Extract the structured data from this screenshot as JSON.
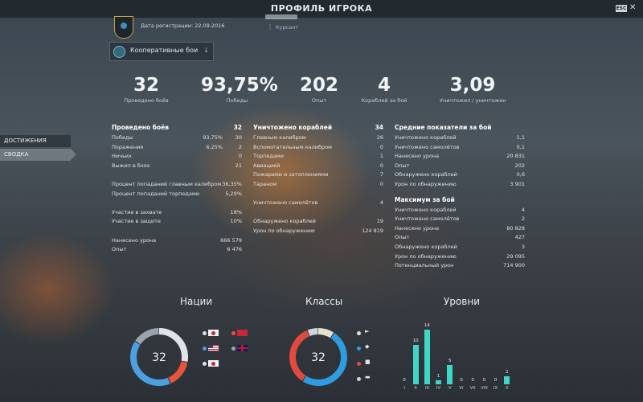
{
  "window": {
    "title": "ПРОФИЛЬ ИГРОКА",
    "close_key": "ESC",
    "close_glyph": "✕"
  },
  "player": {
    "registration": "Дата регистрации: 22.09.2016",
    "rank": "Курсант"
  },
  "mode_select": {
    "value": "Кооперативные бои"
  },
  "summary": [
    {
      "value": "32",
      "label": "Проведено боёв"
    },
    {
      "value": "93,75%",
      "label": "Победы"
    },
    {
      "value": "202",
      "label": "Опыт"
    },
    {
      "value": "4",
      "label": "Кораблей за бой"
    },
    {
      "value": "3,09",
      "label": "Уничтожил / уничтожен"
    }
  ],
  "side_nav": [
    {
      "label": "ДОСТИЖЕНИЯ"
    },
    {
      "label": "СВОДКА"
    }
  ],
  "battles": {
    "header": "Проведено боёв",
    "header_value": "32",
    "rows1": [
      {
        "label": "Победы",
        "pct": "93,75%",
        "value": "30"
      },
      {
        "label": "Поражения",
        "pct": "6,25%",
        "value": "2"
      },
      {
        "label": "Ничьих",
        "pct": "",
        "value": "0"
      },
      {
        "label": "Выжил в боях",
        "pct": "",
        "value": "21"
      }
    ],
    "rows2": [
      {
        "label": "Процент попаданий главным калибром",
        "value": "36,35%"
      },
      {
        "label": "Процент попаданий торпедами",
        "value": "5,29%"
      }
    ],
    "rows3": [
      {
        "label": "Участие в захвате",
        "value": "18%"
      },
      {
        "label": "Участие в защите",
        "value": "10%"
      }
    ],
    "rows4": [
      {
        "label": "Нанесено урона",
        "value": "666 579"
      },
      {
        "label": "Опыт",
        "value": "6 476"
      }
    ]
  },
  "destroyed": {
    "header": "Уничтожено кораблей",
    "header_value": "34",
    "rows1": [
      {
        "label": "Главным калибром",
        "value": "26"
      },
      {
        "label": "Вспомогательным калибром",
        "value": "0"
      },
      {
        "label": "Торпедами",
        "value": "1"
      },
      {
        "label": "Авиацией",
        "value": "0"
      },
      {
        "label": "Пожарами и затоплениями",
        "value": "7"
      },
      {
        "label": "Тараном",
        "value": "0"
      }
    ],
    "rows2": [
      {
        "label": "Уничтожено самолётов",
        "value": "4"
      }
    ],
    "rows3": [
      {
        "label": "Обнаружено кораблей",
        "value": "19"
      },
      {
        "label": "Урон по обнаружению",
        "value": "124 819"
      }
    ]
  },
  "average": {
    "header": "Средние показатели за бой",
    "rows": [
      {
        "label": "Уничтожено кораблей",
        "value": "1,1"
      },
      {
        "label": "Уничтожено самолётов",
        "value": "0,1"
      },
      {
        "label": "Нанесено урона",
        "value": "20 831"
      },
      {
        "label": "Опыт",
        "value": "202"
      },
      {
        "label": "Обнаружено кораблей",
        "value": "0,6"
      },
      {
        "label": "Урон по обнаружению",
        "value": "3 901"
      }
    ]
  },
  "maximum": {
    "header": "Максимум за бой",
    "rows": [
      {
        "label": "Уничтожено кораблей",
        "value": "4"
      },
      {
        "label": "Уничтожено самолётов",
        "value": "2"
      },
      {
        "label": "Нанесено урона",
        "value": "80 828"
      },
      {
        "label": "Опыт",
        "value": "427"
      },
      {
        "label": "Обнаружено кораблей",
        "value": "3"
      },
      {
        "label": "Урон по обнаружению",
        "value": "29 095"
      },
      {
        "label": "Потенциальный урон",
        "value": "714 900"
      }
    ]
  },
  "charts": {
    "nations_title": "Нации",
    "classes_title": "Классы",
    "tiers_title": "Уровни",
    "nations_total": "32",
    "classes_total": "32"
  },
  "chart_data": [
    {
      "type": "pie",
      "title": "Нации",
      "center_label": "32",
      "slices": [
        {
          "name": "japan",
          "value": 9,
          "color": "#dfe4e8"
        },
        {
          "name": "ussr",
          "value": 5,
          "color": "#e8533c"
        },
        {
          "name": "usa",
          "value": 13,
          "color": "#4aa0e0"
        },
        {
          "name": "uk",
          "value": 5,
          "color": "#9aa4ad"
        }
      ]
    },
    {
      "type": "pie",
      "title": "Классы",
      "center_label": "32",
      "slices": [
        {
          "name": "destroyer",
          "value": 3,
          "color": "#e8e0cf"
        },
        {
          "name": "cruiser",
          "value": 16,
          "color": "#2f9be0"
        },
        {
          "name": "battleship",
          "value": 11,
          "color": "#e34a3f"
        },
        {
          "name": "carrier",
          "value": 2,
          "color": "#cfd5da"
        }
      ]
    },
    {
      "type": "bar",
      "title": "Уровни",
      "categories": [
        "I",
        "II",
        "III",
        "IV",
        "V",
        "VI",
        "VII",
        "VIII",
        "IX",
        "X"
      ],
      "values": [
        0,
        10,
        14,
        1,
        5,
        0,
        0,
        0,
        0,
        2
      ],
      "color": "#3fd6c6"
    }
  ]
}
